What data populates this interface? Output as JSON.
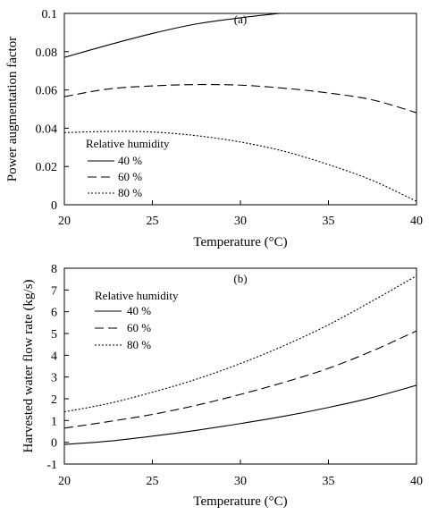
{
  "chart_data": [
    {
      "type": "line",
      "panel_label": "(a)",
      "xlabel": "Temperature  (°C)",
      "ylabel": "Power augmentation factor",
      "xlim": [
        20,
        40
      ],
      "ylim": [
        0,
        0.1
      ],
      "x_ticks": [
        20,
        25,
        30,
        35,
        40
      ],
      "y_ticks": [
        0,
        0.02,
        0.04,
        0.06,
        0.08,
        0.1
      ],
      "x_tick_labels": [
        "20",
        "25",
        "30",
        "35",
        "40"
      ],
      "y_tick_labels": [
        "0",
        "0.02",
        "0.04",
        "0.06",
        "0.08",
        "0.1"
      ],
      "legend": {
        "title": "Relative humidity",
        "placement": "lower-left"
      },
      "x": [
        20,
        22.5,
        25,
        27.5,
        30,
        32.5,
        35,
        37.5,
        40
      ],
      "series": [
        {
          "name": "40 %",
          "dash": "solid",
          "values": [
            0.077,
            0.0835,
            0.0895,
            0.0945,
            0.0977,
            0.1002,
            0.1015,
            0.1018,
            0.1005
          ]
        },
        {
          "name": "60 %",
          "dash": "dashed",
          "values": [
            0.0565,
            0.0605,
            0.0621,
            0.0628,
            0.0625,
            0.0609,
            0.0584,
            0.0548,
            0.0481
          ]
        },
        {
          "name": "80 %",
          "dash": "dotted",
          "values": [
            0.0377,
            0.0383,
            0.038,
            0.0361,
            0.0328,
            0.0279,
            0.021,
            0.0127,
            0.0018
          ]
        }
      ]
    },
    {
      "type": "line",
      "panel_label": "(b)",
      "xlabel": "Temperature  (°C)",
      "ylabel": "Harvested water flow rate (kg/s)",
      "xlim": [
        20,
        40
      ],
      "ylim": [
        -1,
        8
      ],
      "x_ticks": [
        20,
        25,
        30,
        35,
        40
      ],
      "y_ticks": [
        -1,
        0,
        1,
        2,
        3,
        4,
        5,
        6,
        7,
        8
      ],
      "x_tick_labels": [
        "20",
        "25",
        "30",
        "35",
        "40"
      ],
      "y_tick_labels": [
        "-1",
        "0",
        "1",
        "2",
        "3",
        "4",
        "5",
        "6",
        "7",
        "8"
      ],
      "legend": {
        "title": "Relative humidity",
        "placement": "upper-left"
      },
      "x": [
        20,
        22.5,
        25,
        27.5,
        30,
        32.5,
        35,
        37.5,
        40
      ],
      "series": [
        {
          "name": "40 %",
          "dash": "solid",
          "values": [
            -0.1,
            0.05,
            0.28,
            0.55,
            0.86,
            1.2,
            1.6,
            2.06,
            2.62
          ]
        },
        {
          "name": "60 %",
          "dash": "dashed",
          "values": [
            0.65,
            0.95,
            1.28,
            1.7,
            2.2,
            2.76,
            3.4,
            4.2,
            5.12
          ]
        },
        {
          "name": "80 %",
          "dash": "dotted",
          "values": [
            1.4,
            1.78,
            2.3,
            2.9,
            3.62,
            4.45,
            5.4,
            6.5,
            7.65
          ]
        }
      ]
    }
  ]
}
